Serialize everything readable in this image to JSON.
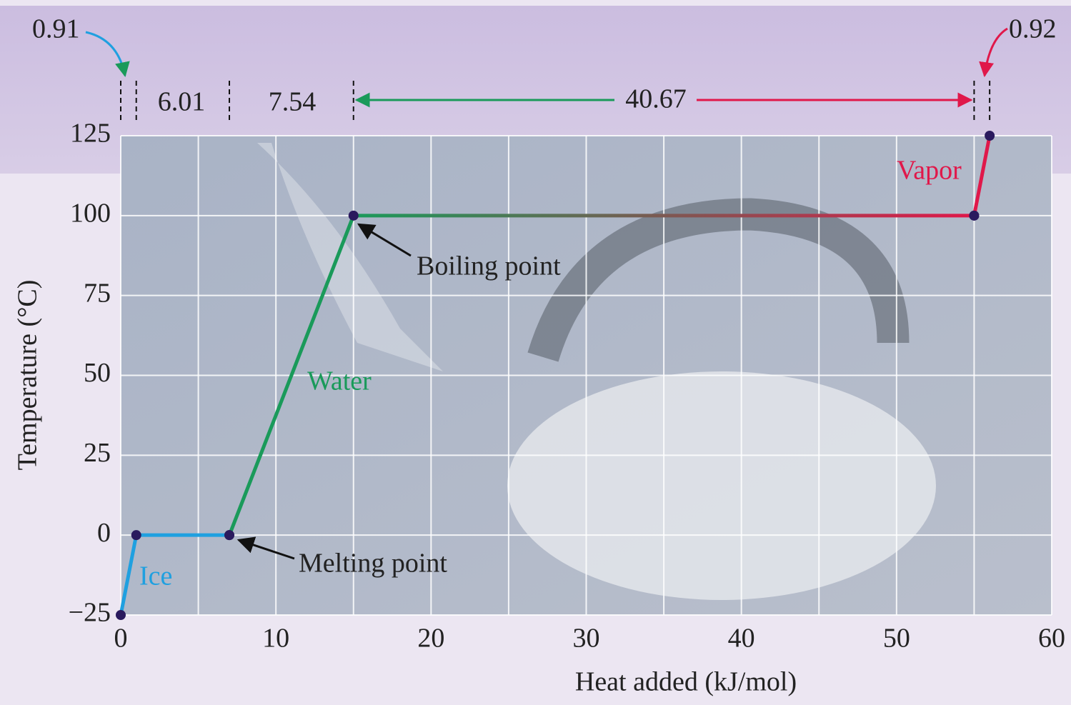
{
  "chart_data": {
    "type": "line",
    "xlabel": "Heat added (kJ/mol)",
    "ylabel": "Temperature (°C)",
    "xlim": [
      0,
      60
    ],
    "xticks": [
      0,
      10,
      20,
      30,
      40,
      50,
      60
    ],
    "ylim": [
      -25,
      125
    ],
    "yticks": [
      {
        "value": -25,
        "label": "−25"
      },
      0,
      25,
      50,
      75,
      100,
      125
    ],
    "grid": true,
    "marker_color": "#2a1a5e",
    "series": [
      {
        "name": "Ice",
        "color": "#1fa0e0",
        "x": [
          0,
          1,
          7
        ],
        "values": [
          -25,
          0,
          0
        ]
      },
      {
        "name": "Water",
        "color": "#1a9a5a",
        "x": [
          7,
          15,
          55
        ],
        "values": [
          0,
          100,
          100
        ]
      },
      {
        "name": "Vapor",
        "color": "#e0184a",
        "x": [
          55,
          56
        ],
        "values": [
          100,
          125
        ]
      }
    ],
    "annotations": {
      "ice_heat": "0.91",
      "fusion": "6.01",
      "water_heat": "7.54",
      "vaporization": "40.67",
      "vapor_heat": "0.92",
      "boiling": "Boiling point",
      "melting": "Melting point"
    }
  }
}
